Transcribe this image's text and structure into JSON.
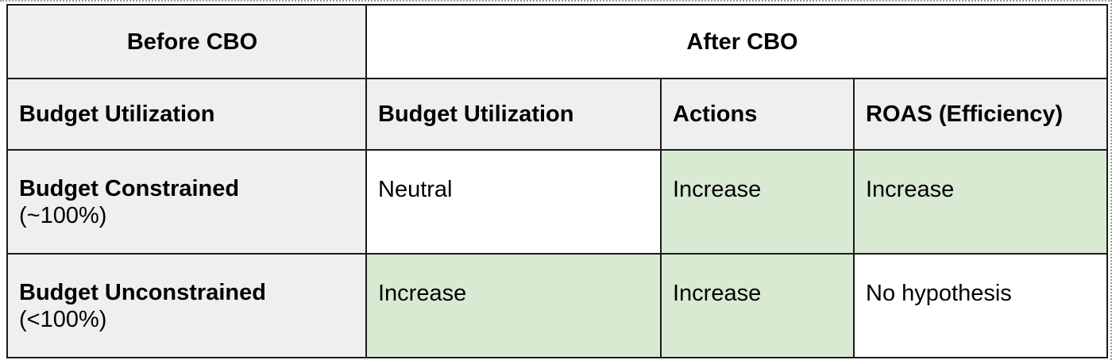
{
  "table": {
    "header": {
      "before": "Before CBO",
      "after": "After CBO"
    },
    "subheader": {
      "before_metric": "Budget Utilization",
      "after_metrics": [
        "Budget Utilization",
        "Actions",
        "ROAS (Efficiency)"
      ]
    },
    "rows": [
      {
        "label": "Budget Constrained",
        "sublabel": "(~100%)",
        "cells": [
          {
            "value": "Neutral",
            "highlight": false
          },
          {
            "value": "Increase",
            "highlight": true
          },
          {
            "value": "Increase",
            "highlight": true
          }
        ]
      },
      {
        "label": "Budget Unconstrained",
        "sublabel": "(<100%)",
        "cells": [
          {
            "value": "Increase",
            "highlight": true
          },
          {
            "value": "Increase",
            "highlight": true
          },
          {
            "value": "No hypothesis",
            "highlight": false
          }
        ]
      }
    ],
    "colors": {
      "header_bg": "#efefef",
      "highlight_bg": "#d9ead3",
      "border": "#1a1a1a"
    }
  }
}
